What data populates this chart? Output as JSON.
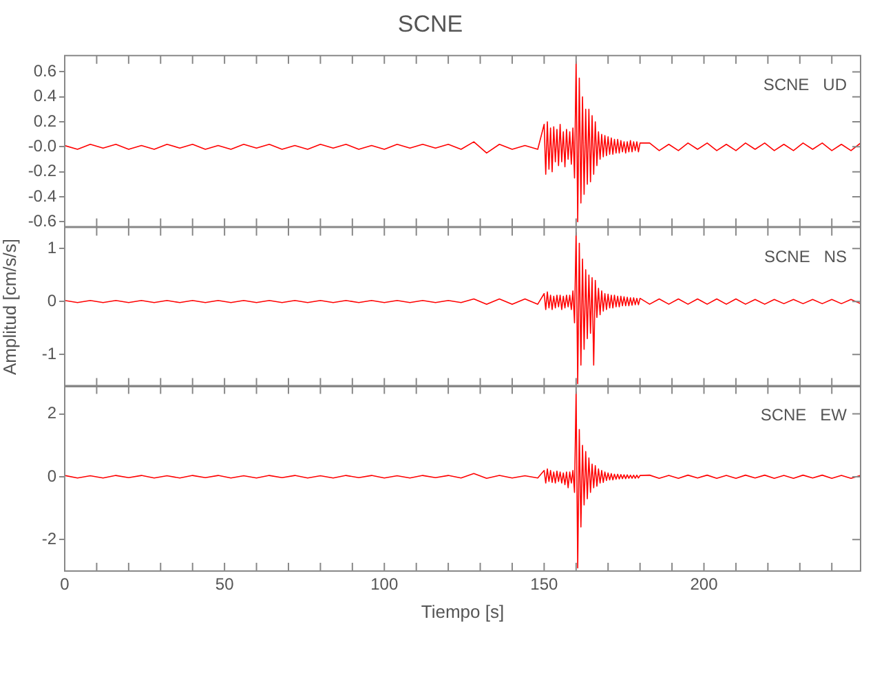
{
  "chart_data": [
    {
      "type": "line",
      "title": "SCNE",
      "annotations": [
        "SCNE   UD"
      ],
      "tick_labels": "y",
      "grid": false,
      "marker": "none",
      "xlim": [
        0,
        249
      ],
      "xticks": [
        0,
        {
          "value": 10,
          "label": null
        },
        {
          "value": 20,
          "label": null
        },
        {
          "value": 30,
          "label": null
        },
        {
          "value": 40,
          "label": null
        },
        50,
        {
          "value": 60,
          "label": null
        },
        {
          "value": 70,
          "label": null
        },
        {
          "value": 80,
          "label": null
        },
        {
          "value": 90,
          "label": null
        },
        100,
        {
          "value": 110,
          "label": null
        },
        {
          "value": 120,
          "label": null
        },
        {
          "value": 130,
          "label": null
        },
        {
          "value": 140,
          "label": null
        },
        150,
        {
          "value": 160,
          "label": null
        },
        {
          "value": 170,
          "label": null
        },
        {
          "value": 180,
          "label": null
        },
        {
          "value": 190,
          "label": null
        },
        200,
        {
          "value": 210,
          "label": null
        },
        {
          "value": 220,
          "label": null
        },
        {
          "value": 230,
          "label": null
        },
        {
          "value": 240,
          "label": null
        }
      ],
      "ylim": [
        -0.64,
        0.73
      ],
      "yticks": [
        -0.6,
        -0.4,
        -0.2,
        {
          "value": 0,
          "label": "-0.0"
        },
        0.2,
        0.4,
        0.6
      ],
      "x": [
        0,
        4,
        8,
        12,
        16,
        20,
        24,
        28,
        32,
        36,
        40,
        44,
        48,
        52,
        56,
        60,
        64,
        68,
        72,
        76,
        80,
        84,
        88,
        92,
        96,
        100,
        104,
        108,
        112,
        116,
        120,
        124,
        128,
        132,
        136,
        140,
        144,
        148,
        150,
        150.5,
        151,
        151.5,
        152,
        152.5,
        153,
        153.5,
        154,
        154.5,
        155,
        155.5,
        156,
        156.5,
        157,
        157.5,
        158,
        158.5,
        159,
        159.5,
        160,
        160.5,
        161,
        161.5,
        162,
        162.5,
        163,
        163.5,
        164,
        164.5,
        165,
        165.5,
        166,
        166.5,
        167,
        167.5,
        168,
        168.5,
        169,
        169.5,
        170,
        170.5,
        171,
        171.5,
        172,
        172.5,
        173,
        173.5,
        174,
        174.5,
        175,
        175.5,
        176,
        176.5,
        177,
        177.5,
        178,
        178.5,
        179,
        179.5,
        180,
        183,
        186,
        189,
        192,
        195,
        198,
        201,
        204,
        207,
        210,
        213,
        216,
        219,
        222,
        225,
        228,
        231,
        234,
        237,
        240,
        243,
        246,
        249
      ],
      "series": [
        {
          "color": "#ff0000",
          "values": [
            0.01,
            -0.02,
            0.02,
            -0.01,
            0.02,
            -0.02,
            0.01,
            -0.02,
            0.02,
            -0.01,
            0.02,
            -0.02,
            0.01,
            -0.02,
            0.02,
            -0.01,
            0.02,
            -0.02,
            0.01,
            -0.02,
            0.02,
            -0.01,
            0.02,
            -0.02,
            0.01,
            -0.02,
            0.02,
            -0.01,
            0.02,
            -0.01,
            0.02,
            -0.02,
            0.04,
            -0.05,
            0.02,
            -0.02,
            0.01,
            -0.02,
            0.18,
            -0.22,
            0.2,
            -0.18,
            0.15,
            -0.2,
            0.16,
            -0.12,
            0.14,
            -0.15,
            0.18,
            -0.12,
            0.12,
            -0.16,
            0.14,
            -0.1,
            0.12,
            -0.14,
            0.15,
            -0.25,
            0.68,
            -0.6,
            0.55,
            -0.45,
            0.4,
            -0.38,
            0.3,
            -0.3,
            0.3,
            -0.28,
            0.25,
            -0.22,
            0.2,
            -0.15,
            0.12,
            -0.1,
            0.1,
            -0.08,
            0.09,
            -0.07,
            0.08,
            -0.06,
            0.07,
            -0.06,
            0.06,
            -0.05,
            0.06,
            -0.05,
            0.05,
            -0.04,
            0.04,
            -0.05,
            0.04,
            -0.04,
            0.05,
            -0.04,
            0.04,
            -0.03,
            0.04,
            -0.04,
            0.03,
            0.03,
            -0.03,
            0.02,
            -0.03,
            0.03,
            -0.02,
            0.03,
            -0.03,
            0.02,
            -0.03,
            0.03,
            -0.02,
            0.03,
            -0.03,
            0.02,
            -0.03,
            0.03,
            -0.02,
            0.03,
            -0.03,
            0.02,
            -0.03,
            0.03
          ]
        }
      ]
    },
    {
      "type": "line",
      "ylabel": "Amplitud [cm/s/s]",
      "annotations": [
        "SCNE   NS"
      ],
      "tick_labels": "y",
      "grid": false,
      "marker": "none",
      "xlim": [
        0,
        249
      ],
      "xticks": [
        0,
        {
          "value": 10,
          "label": null
        },
        {
          "value": 20,
          "label": null
        },
        {
          "value": 30,
          "label": null
        },
        {
          "value": 40,
          "label": null
        },
        50,
        {
          "value": 60,
          "label": null
        },
        {
          "value": 70,
          "label": null
        },
        {
          "value": 80,
          "label": null
        },
        {
          "value": 90,
          "label": null
        },
        100,
        {
          "value": 110,
          "label": null
        },
        {
          "value": 120,
          "label": null
        },
        {
          "value": 130,
          "label": null
        },
        {
          "value": 140,
          "label": null
        },
        150,
        {
          "value": 160,
          "label": null
        },
        {
          "value": 170,
          "label": null
        },
        {
          "value": 180,
          "label": null
        },
        {
          "value": 190,
          "label": null
        },
        200,
        {
          "value": 210,
          "label": null
        },
        {
          "value": 220,
          "label": null
        },
        {
          "value": 230,
          "label": null
        },
        {
          "value": 240,
          "label": null
        }
      ],
      "ylim": [
        -1.6,
        1.4
      ],
      "yticks": [
        -1,
        0,
        1
      ],
      "x": [
        0,
        4,
        8,
        12,
        16,
        20,
        24,
        28,
        32,
        36,
        40,
        44,
        48,
        52,
        56,
        60,
        64,
        68,
        72,
        76,
        80,
        84,
        88,
        92,
        96,
        100,
        104,
        108,
        112,
        116,
        120,
        124,
        128,
        132,
        136,
        140,
        144,
        148,
        150,
        150.5,
        151,
        151.5,
        152,
        152.5,
        153,
        153.5,
        154,
        154.5,
        155,
        155.5,
        156,
        156.5,
        157,
        157.5,
        158,
        158.5,
        159,
        159.5,
        160,
        160.5,
        161,
        161.5,
        162,
        162.5,
        163,
        163.5,
        164,
        164.5,
        165,
        165.5,
        166,
        166.5,
        167,
        167.5,
        168,
        168.5,
        169,
        169.5,
        170,
        170.5,
        171,
        171.5,
        172,
        172.5,
        173,
        173.5,
        174,
        174.5,
        175,
        175.5,
        176,
        176.5,
        177,
        177.5,
        178,
        178.5,
        179,
        179.5,
        180,
        183,
        186,
        189,
        192,
        195,
        198,
        201,
        204,
        207,
        210,
        213,
        216,
        219,
        222,
        225,
        228,
        231,
        234,
        237,
        240,
        243,
        246,
        249
      ],
      "series": [
        {
          "color": "#ff0000",
          "values": [
            0.02,
            -0.02,
            0.02,
            -0.02,
            0.02,
            -0.02,
            0.02,
            -0.02,
            0.02,
            -0.02,
            0.02,
            -0.02,
            0.02,
            -0.02,
            0.02,
            -0.02,
            0.02,
            -0.02,
            0.02,
            -0.02,
            0.02,
            -0.02,
            0.02,
            -0.02,
            0.02,
            -0.02,
            0.02,
            -0.02,
            0.02,
            -0.02,
            0.02,
            -0.02,
            0.05,
            -0.05,
            0.05,
            -0.05,
            0.05,
            -0.05,
            0.15,
            -0.15,
            0.18,
            -0.12,
            0.12,
            -0.15,
            0.1,
            -0.12,
            0.12,
            -0.1,
            0.12,
            -0.15,
            0.1,
            -0.12,
            0.12,
            -0.1,
            0.12,
            -0.15,
            0.2,
            -0.4,
            1.3,
            -1.55,
            1.1,
            -1.2,
            0.8,
            -0.9,
            0.6,
            -0.7,
            0.5,
            -0.6,
            0.45,
            -1.2,
            0.4,
            -0.3,
            0.25,
            -0.25,
            0.2,
            -0.18,
            0.15,
            -0.15,
            0.14,
            -0.12,
            0.12,
            -0.12,
            0.12,
            -0.1,
            0.1,
            -0.1,
            0.1,
            -0.08,
            0.09,
            -0.08,
            0.08,
            -0.08,
            0.07,
            -0.07,
            0.07,
            -0.06,
            0.06,
            -0.06,
            0.06,
            -0.05,
            0.05,
            -0.05,
            0.05,
            -0.05,
            0.05,
            -0.05,
            0.05,
            -0.05,
            0.05,
            -0.05,
            0.04,
            -0.05,
            0.04,
            -0.04,
            0.04,
            -0.04,
            0.04,
            -0.04,
            0.04,
            -0.04,
            0.04,
            -0.04
          ]
        }
      ]
    },
    {
      "type": "line",
      "xlabel": "Tiempo [s]",
      "annotations": [
        "SCNE   EW"
      ],
      "grid": false,
      "marker": "none",
      "xlim": [
        0,
        249
      ],
      "xticks": [
        0,
        {
          "value": 10,
          "label": null
        },
        {
          "value": 20,
          "label": null
        },
        {
          "value": 30,
          "label": null
        },
        {
          "value": 40,
          "label": null
        },
        50,
        {
          "value": 60,
          "label": null
        },
        {
          "value": 70,
          "label": null
        },
        {
          "value": 80,
          "label": null
        },
        {
          "value": 90,
          "label": null
        },
        100,
        {
          "value": 110,
          "label": null
        },
        {
          "value": 120,
          "label": null
        },
        {
          "value": 130,
          "label": null
        },
        {
          "value": 140,
          "label": null
        },
        150,
        {
          "value": 160,
          "label": null
        },
        {
          "value": 170,
          "label": null
        },
        {
          "value": 180,
          "label": null
        },
        {
          "value": 190,
          "label": null
        },
        200,
        {
          "value": 210,
          "label": null
        },
        {
          "value": 220,
          "label": null
        },
        {
          "value": 230,
          "label": null
        },
        {
          "value": 240,
          "label": null
        }
      ],
      "ylim": [
        -3.0,
        2.9
      ],
      "yticks": [
        -2,
        0,
        2
      ],
      "x": [
        0,
        4,
        8,
        12,
        16,
        20,
        24,
        28,
        32,
        36,
        40,
        44,
        48,
        52,
        56,
        60,
        64,
        68,
        72,
        76,
        80,
        84,
        88,
        92,
        96,
        100,
        104,
        108,
        112,
        116,
        120,
        124,
        128,
        132,
        136,
        140,
        144,
        148,
        150,
        150.5,
        151,
        151.5,
        152,
        152.5,
        153,
        153.5,
        154,
        154.5,
        155,
        155.5,
        156,
        156.5,
        157,
        157.5,
        158,
        158.5,
        159,
        159.5,
        160,
        160.5,
        161,
        161.5,
        162,
        162.5,
        163,
        163.5,
        164,
        164.5,
        165,
        165.5,
        166,
        166.5,
        167,
        167.5,
        168,
        168.5,
        169,
        169.5,
        170,
        170.5,
        171,
        171.5,
        172,
        172.5,
        173,
        173.5,
        174,
        174.5,
        175,
        175.5,
        176,
        176.5,
        177,
        177.5,
        178,
        178.5,
        179,
        179.5,
        180,
        183,
        186,
        189,
        192,
        195,
        198,
        201,
        204,
        207,
        210,
        213,
        216,
        219,
        222,
        225,
        228,
        231,
        234,
        237,
        240,
        243,
        246,
        249
      ],
      "series": [
        {
          "color": "#ff0000",
          "values": [
            0.04,
            -0.04,
            0.03,
            -0.04,
            0.04,
            -0.03,
            0.04,
            -0.04,
            0.03,
            -0.04,
            0.04,
            -0.03,
            0.04,
            -0.04,
            0.03,
            -0.04,
            0.04,
            -0.03,
            0.04,
            -0.04,
            0.03,
            -0.04,
            0.04,
            -0.03,
            0.04,
            -0.04,
            0.03,
            -0.04,
            0.04,
            -0.03,
            0.04,
            -0.04,
            0.1,
            -0.05,
            0.04,
            -0.04,
            0.03,
            -0.04,
            0.2,
            -0.2,
            0.25,
            -0.15,
            0.2,
            -0.18,
            0.15,
            -0.2,
            0.18,
            -0.15,
            0.15,
            -0.2,
            0.12,
            -0.25,
            0.15,
            -0.35,
            0.15,
            -0.2,
            0.2,
            -0.5,
            2.7,
            -2.9,
            1.5,
            -1.6,
            1.0,
            -0.9,
            0.8,
            -0.7,
            0.6,
            -0.5,
            0.4,
            -0.35,
            0.35,
            -0.3,
            0.25,
            -0.2,
            0.2,
            -0.18,
            0.15,
            -0.12,
            0.12,
            -0.1,
            0.1,
            -0.1,
            0.08,
            -0.08,
            0.08,
            -0.07,
            0.07,
            -0.06,
            0.06,
            -0.06,
            0.06,
            -0.05,
            0.05,
            -0.05,
            0.05,
            -0.05,
            0.05,
            -0.04,
            0.04,
            0.05,
            -0.05,
            0.04,
            -0.05,
            0.05,
            -0.04,
            0.05,
            -0.05,
            0.04,
            -0.05,
            0.05,
            -0.04,
            0.05,
            -0.05,
            0.04,
            -0.05,
            0.05,
            -0.04,
            0.05,
            -0.05,
            0.04,
            -0.05,
            0.04
          ]
        }
      ]
    }
  ]
}
